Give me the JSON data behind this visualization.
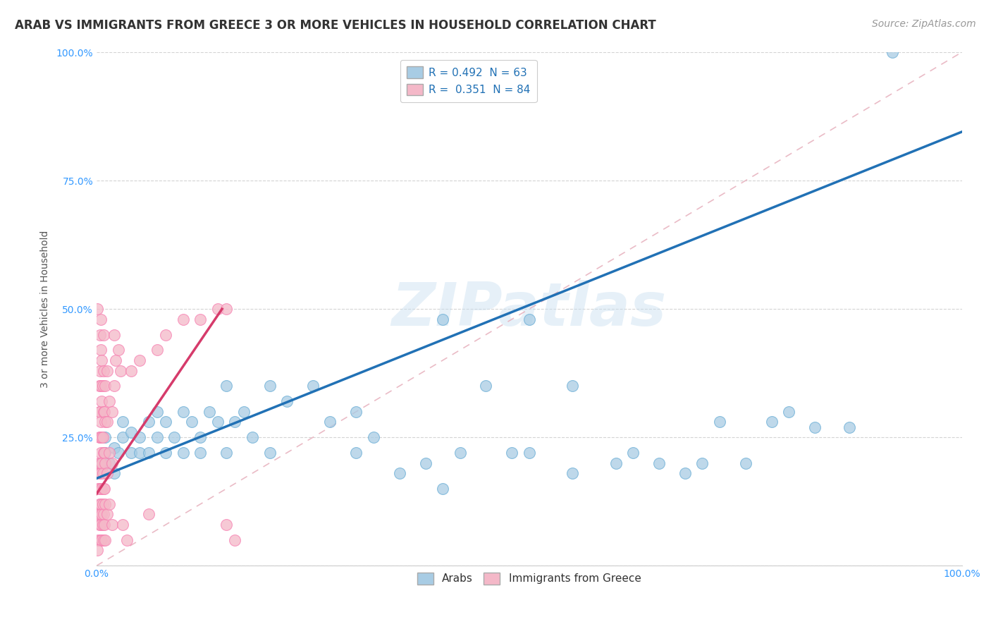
{
  "title": "ARAB VS IMMIGRANTS FROM GREECE 3 OR MORE VEHICLES IN HOUSEHOLD CORRELATION CHART",
  "source": "Source: ZipAtlas.com",
  "ylabel": "3 or more Vehicles in Household",
  "xlim": [
    0.0,
    1.0
  ],
  "ylim": [
    0.0,
    1.0
  ],
  "xticks": [
    0.0,
    0.25,
    0.5,
    0.75,
    1.0
  ],
  "yticks": [
    0.0,
    0.25,
    0.5,
    0.75,
    1.0
  ],
  "xticklabels": [
    "0.0%",
    "",
    "",
    "",
    "100.0%"
  ],
  "yticklabels": [
    "",
    "25.0%",
    "50.0%",
    "75.0%",
    "100.0%"
  ],
  "legend_labels": [
    "Arabs",
    "Immigrants from Greece"
  ],
  "blue_color": "#a8cce4",
  "pink_color": "#f4b8c8",
  "blue_edge_color": "#6baed6",
  "pink_edge_color": "#f77fb1",
  "blue_R": 0.492,
  "blue_N": 63,
  "pink_R": 0.351,
  "pink_N": 84,
  "watermark": "ZIPatlas",
  "blue_scatter": [
    [
      0.005,
      0.2
    ],
    [
      0.01,
      0.22
    ],
    [
      0.01,
      0.25
    ],
    [
      0.015,
      0.2
    ],
    [
      0.02,
      0.23
    ],
    [
      0.02,
      0.18
    ],
    [
      0.025,
      0.22
    ],
    [
      0.03,
      0.25
    ],
    [
      0.03,
      0.28
    ],
    [
      0.04,
      0.22
    ],
    [
      0.04,
      0.26
    ],
    [
      0.05,
      0.22
    ],
    [
      0.05,
      0.25
    ],
    [
      0.06,
      0.28
    ],
    [
      0.06,
      0.22
    ],
    [
      0.07,
      0.3
    ],
    [
      0.07,
      0.25
    ],
    [
      0.08,
      0.28
    ],
    [
      0.08,
      0.22
    ],
    [
      0.09,
      0.25
    ],
    [
      0.1,
      0.3
    ],
    [
      0.1,
      0.22
    ],
    [
      0.11,
      0.28
    ],
    [
      0.12,
      0.25
    ],
    [
      0.12,
      0.22
    ],
    [
      0.13,
      0.3
    ],
    [
      0.14,
      0.28
    ],
    [
      0.15,
      0.22
    ],
    [
      0.15,
      0.35
    ],
    [
      0.16,
      0.28
    ],
    [
      0.17,
      0.3
    ],
    [
      0.18,
      0.25
    ],
    [
      0.2,
      0.35
    ],
    [
      0.2,
      0.22
    ],
    [
      0.22,
      0.32
    ],
    [
      0.25,
      0.35
    ],
    [
      0.27,
      0.28
    ],
    [
      0.3,
      0.3
    ],
    [
      0.3,
      0.22
    ],
    [
      0.32,
      0.25
    ],
    [
      0.35,
      0.18
    ],
    [
      0.38,
      0.2
    ],
    [
      0.4,
      0.15
    ],
    [
      0.4,
      0.48
    ],
    [
      0.42,
      0.22
    ],
    [
      0.45,
      0.35
    ],
    [
      0.48,
      0.22
    ],
    [
      0.5,
      0.48
    ],
    [
      0.5,
      0.22
    ],
    [
      0.55,
      0.18
    ],
    [
      0.55,
      0.35
    ],
    [
      0.6,
      0.2
    ],
    [
      0.62,
      0.22
    ],
    [
      0.65,
      0.2
    ],
    [
      0.68,
      0.18
    ],
    [
      0.7,
      0.2
    ],
    [
      0.72,
      0.28
    ],
    [
      0.75,
      0.2
    ],
    [
      0.78,
      0.28
    ],
    [
      0.8,
      0.3
    ],
    [
      0.83,
      0.27
    ],
    [
      0.87,
      0.27
    ],
    [
      0.92,
      1.0
    ]
  ],
  "pink_scatter": [
    [
      0.002,
      0.05
    ],
    [
      0.002,
      0.1
    ],
    [
      0.002,
      0.15
    ],
    [
      0.002,
      0.2
    ],
    [
      0.003,
      0.08
    ],
    [
      0.003,
      0.12
    ],
    [
      0.003,
      0.18
    ],
    [
      0.003,
      0.25
    ],
    [
      0.003,
      0.3
    ],
    [
      0.003,
      0.35
    ],
    [
      0.004,
      0.05
    ],
    [
      0.004,
      0.1
    ],
    [
      0.004,
      0.15
    ],
    [
      0.004,
      0.2
    ],
    [
      0.004,
      0.25
    ],
    [
      0.004,
      0.3
    ],
    [
      0.004,
      0.38
    ],
    [
      0.004,
      0.45
    ],
    [
      0.005,
      0.08
    ],
    [
      0.005,
      0.12
    ],
    [
      0.005,
      0.18
    ],
    [
      0.005,
      0.22
    ],
    [
      0.005,
      0.28
    ],
    [
      0.005,
      0.35
    ],
    [
      0.005,
      0.42
    ],
    [
      0.005,
      0.48
    ],
    [
      0.006,
      0.05
    ],
    [
      0.006,
      0.1
    ],
    [
      0.006,
      0.15
    ],
    [
      0.006,
      0.2
    ],
    [
      0.006,
      0.25
    ],
    [
      0.006,
      0.32
    ],
    [
      0.006,
      0.4
    ],
    [
      0.007,
      0.08
    ],
    [
      0.007,
      0.12
    ],
    [
      0.007,
      0.18
    ],
    [
      0.007,
      0.25
    ],
    [
      0.007,
      0.35
    ],
    [
      0.008,
      0.05
    ],
    [
      0.008,
      0.1
    ],
    [
      0.008,
      0.15
    ],
    [
      0.008,
      0.22
    ],
    [
      0.008,
      0.3
    ],
    [
      0.008,
      0.38
    ],
    [
      0.008,
      0.45
    ],
    [
      0.009,
      0.08
    ],
    [
      0.009,
      0.15
    ],
    [
      0.009,
      0.22
    ],
    [
      0.009,
      0.3
    ],
    [
      0.01,
      0.05
    ],
    [
      0.01,
      0.12
    ],
    [
      0.01,
      0.2
    ],
    [
      0.01,
      0.28
    ],
    [
      0.01,
      0.35
    ],
    [
      0.012,
      0.1
    ],
    [
      0.012,
      0.18
    ],
    [
      0.012,
      0.28
    ],
    [
      0.012,
      0.38
    ],
    [
      0.015,
      0.12
    ],
    [
      0.015,
      0.22
    ],
    [
      0.015,
      0.32
    ],
    [
      0.018,
      0.08
    ],
    [
      0.018,
      0.2
    ],
    [
      0.018,
      0.3
    ],
    [
      0.02,
      0.35
    ],
    [
      0.02,
      0.45
    ],
    [
      0.022,
      0.4
    ],
    [
      0.025,
      0.42
    ],
    [
      0.028,
      0.38
    ],
    [
      0.03,
      0.08
    ],
    [
      0.035,
      0.05
    ],
    [
      0.04,
      0.38
    ],
    [
      0.05,
      0.4
    ],
    [
      0.06,
      0.1
    ],
    [
      0.07,
      0.42
    ],
    [
      0.08,
      0.45
    ],
    [
      0.1,
      0.48
    ],
    [
      0.12,
      0.48
    ],
    [
      0.14,
      0.5
    ],
    [
      0.15,
      0.08
    ],
    [
      0.15,
      0.5
    ],
    [
      0.16,
      0.05
    ],
    [
      0.001,
      0.5
    ],
    [
      0.001,
      0.03
    ]
  ],
  "blue_line_color": "#2171b5",
  "pink_line_color": "#d63b6b",
  "diag_line_color": "#e8b4c0",
  "grid_color": "#d0d0d0",
  "background_color": "#ffffff",
  "title_fontsize": 12,
  "axis_label_fontsize": 10,
  "tick_fontsize": 10,
  "legend_fontsize": 11,
  "source_fontsize": 10,
  "blue_line_x0": 0.0,
  "blue_line_y0": 0.17,
  "blue_line_x1": 1.0,
  "blue_line_y1": 0.845,
  "pink_line_x0": 0.0,
  "pink_line_y0": 0.14,
  "pink_line_x1": 0.145,
  "pink_line_y1": 0.5
}
